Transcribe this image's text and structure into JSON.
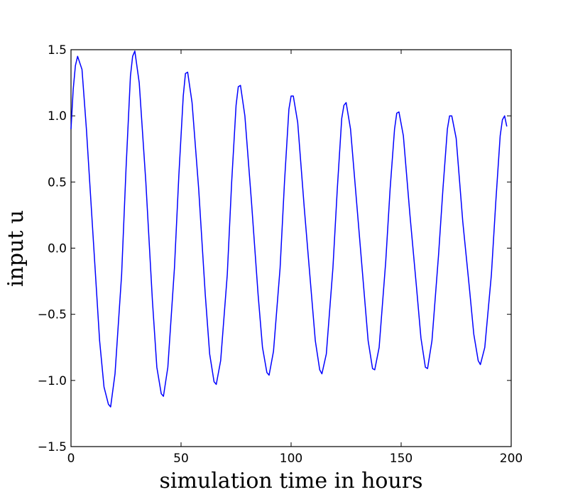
{
  "chart_data": {
    "type": "line",
    "title": "",
    "xlabel": "simulation time in hours",
    "ylabel": "input u",
    "xlim": [
      0,
      200
    ],
    "ylim": [
      -1.5,
      1.5
    ],
    "xticks": [
      0,
      50,
      100,
      150,
      200
    ],
    "xtick_labels": [
      "0",
      "50",
      "100",
      "150",
      "200"
    ],
    "yticks": [
      -1.5,
      -1.0,
      -0.5,
      0.0,
      0.5,
      1.0,
      1.5
    ],
    "ytick_labels": [
      "−1.5",
      "−1.0",
      "−0.5",
      "0.0",
      "0.5",
      "1.0",
      "1.5"
    ],
    "grid": false,
    "legend": false,
    "series": [
      {
        "color": "#0000ff",
        "x": [
          0,
          1,
          2,
          3,
          5,
          7,
          10,
          13,
          15,
          17,
          18,
          20,
          23,
          25,
          27,
          28,
          29,
          31,
          34,
          37,
          39,
          41,
          42,
          44,
          47,
          49,
          51,
          52,
          53,
          55,
          58,
          61,
          63,
          65,
          66,
          68,
          71,
          73,
          75,
          76,
          77,
          79,
          82,
          85,
          87,
          89,
          90,
          92,
          95,
          97,
          99,
          100,
          101,
          103,
          106,
          109,
          111,
          113,
          114,
          116,
          119,
          121,
          123,
          124,
          125,
          127,
          130,
          133,
          135,
          137,
          138,
          140,
          143,
          145,
          147,
          148,
          149,
          151,
          154,
          157,
          159,
          161,
          162,
          164,
          167,
          169,
          171,
          172,
          173,
          175,
          178,
          181,
          183,
          185,
          186,
          188,
          191,
          193,
          195,
          196,
          197,
          198
        ],
        "values": [
          0.9,
          1.2,
          1.38,
          1.45,
          1.35,
          0.9,
          0.1,
          -0.7,
          -1.05,
          -1.18,
          -1.2,
          -0.95,
          -0.2,
          0.6,
          1.3,
          1.45,
          1.49,
          1.25,
          0.5,
          -0.4,
          -0.9,
          -1.1,
          -1.12,
          -0.9,
          -0.15,
          0.55,
          1.15,
          1.32,
          1.33,
          1.1,
          0.45,
          -0.35,
          -0.8,
          -1.01,
          -1.03,
          -0.85,
          -0.2,
          0.5,
          1.08,
          1.22,
          1.23,
          1.0,
          0.35,
          -0.35,
          -0.75,
          -0.94,
          -0.96,
          -0.78,
          -0.15,
          0.5,
          1.05,
          1.15,
          1.15,
          0.95,
          0.3,
          -0.3,
          -0.7,
          -0.92,
          -0.95,
          -0.8,
          -0.15,
          0.45,
          0.98,
          1.08,
          1.1,
          0.9,
          0.3,
          -0.3,
          -0.7,
          -0.91,
          -0.92,
          -0.75,
          -0.1,
          0.45,
          0.9,
          1.02,
          1.03,
          0.85,
          0.25,
          -0.3,
          -0.68,
          -0.9,
          -0.91,
          -0.7,
          -0.05,
          0.45,
          0.9,
          1.0,
          1.0,
          0.83,
          0.2,
          -0.3,
          -0.65,
          -0.85,
          -0.88,
          -0.75,
          -0.2,
          0.35,
          0.85,
          0.97,
          1.0,
          0.92
        ]
      }
    ]
  }
}
